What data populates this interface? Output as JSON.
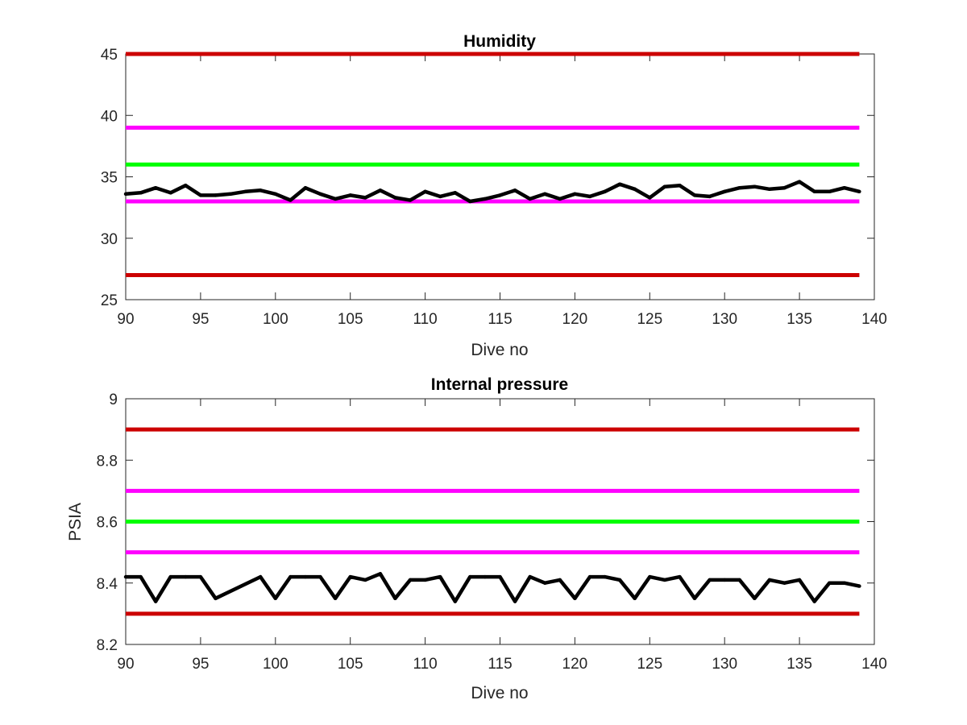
{
  "colors": {
    "red": "#cc0000",
    "magenta": "#ff00ff",
    "green": "#00ff00",
    "data": "#000000",
    "axis": "#262626"
  },
  "chart_data": [
    {
      "type": "line",
      "title": "Humidity",
      "xlabel": "Dive no",
      "ylabel": "",
      "xlim": [
        90,
        140
      ],
      "ylim": [
        25,
        45
      ],
      "xticks": [
        90,
        95,
        100,
        105,
        110,
        115,
        120,
        125,
        130,
        135,
        140
      ],
      "yticks": [
        25,
        30,
        35,
        40,
        45
      ],
      "grid": false,
      "thresholds": [
        {
          "y": 45,
          "color": "red"
        },
        {
          "y": 39,
          "color": "magenta"
        },
        {
          "y": 36,
          "color": "green"
        },
        {
          "y": 33,
          "color": "magenta"
        },
        {
          "y": 27,
          "color": "red"
        }
      ],
      "series": [
        {
          "color": "data",
          "x": [
            90,
            91,
            92,
            93,
            94,
            95,
            96,
            97,
            98,
            99,
            100,
            101,
            102,
            103,
            104,
            105,
            106,
            107,
            108,
            109,
            110,
            111,
            112,
            113,
            114,
            115,
            116,
            117,
            118,
            119,
            120,
            121,
            122,
            123,
            124,
            125,
            126,
            127,
            128,
            129,
            130,
            131,
            132,
            133,
            134,
            135,
            136,
            137,
            138,
            139
          ],
          "y": [
            33.6,
            33.7,
            34.1,
            33.7,
            34.3,
            33.5,
            33.5,
            33.6,
            33.8,
            33.9,
            33.6,
            33.1,
            34.1,
            33.6,
            33.2,
            33.5,
            33.3,
            33.9,
            33.3,
            33.1,
            33.8,
            33.4,
            33.7,
            33.0,
            33.2,
            33.5,
            33.9,
            33.2,
            33.6,
            33.2,
            33.6,
            33.4,
            33.8,
            34.4,
            34.0,
            33.3,
            34.2,
            34.3,
            33.5,
            33.4,
            33.8,
            34.1,
            34.2,
            34.0,
            34.1,
            34.6,
            33.8,
            33.8,
            34.1,
            33.8
          ]
        }
      ]
    },
    {
      "type": "line",
      "title": "Internal pressure",
      "xlabel": "Dive no",
      "ylabel": "PSIA",
      "xlim": [
        90,
        140
      ],
      "ylim": [
        8.2,
        9
      ],
      "xticks": [
        90,
        95,
        100,
        105,
        110,
        115,
        120,
        125,
        130,
        135,
        140
      ],
      "yticks": [
        8.2,
        8.4,
        8.6,
        8.8,
        9
      ],
      "grid": false,
      "thresholds": [
        {
          "y": 8.9,
          "color": "red"
        },
        {
          "y": 8.7,
          "color": "magenta"
        },
        {
          "y": 8.6,
          "color": "green"
        },
        {
          "y": 8.5,
          "color": "magenta"
        },
        {
          "y": 8.3,
          "color": "red"
        }
      ],
      "series": [
        {
          "color": "data",
          "x": [
            90,
            91,
            92,
            93,
            94,
            95,
            96,
            99,
            100,
            101,
            102,
            103,
            104,
            105,
            106,
            107,
            108,
            109,
            110,
            111,
            112,
            113,
            114,
            115,
            116,
            117,
            118,
            119,
            120,
            121,
            122,
            123,
            124,
            125,
            126,
            127,
            128,
            129,
            130,
            131,
            132,
            133,
            134,
            135,
            136,
            137,
            138,
            139
          ],
          "y": [
            8.42,
            8.42,
            8.34,
            8.42,
            8.42,
            8.42,
            8.35,
            8.42,
            8.35,
            8.42,
            8.42,
            8.42,
            8.35,
            8.42,
            8.41,
            8.43,
            8.35,
            8.41,
            8.41,
            8.42,
            8.34,
            8.42,
            8.42,
            8.42,
            8.34,
            8.42,
            8.4,
            8.41,
            8.35,
            8.42,
            8.42,
            8.41,
            8.35,
            8.42,
            8.41,
            8.42,
            8.35,
            8.41,
            8.41,
            8.41,
            8.35,
            8.41,
            8.4,
            8.41,
            8.34,
            8.4,
            8.4,
            8.39
          ]
        }
      ]
    }
  ]
}
